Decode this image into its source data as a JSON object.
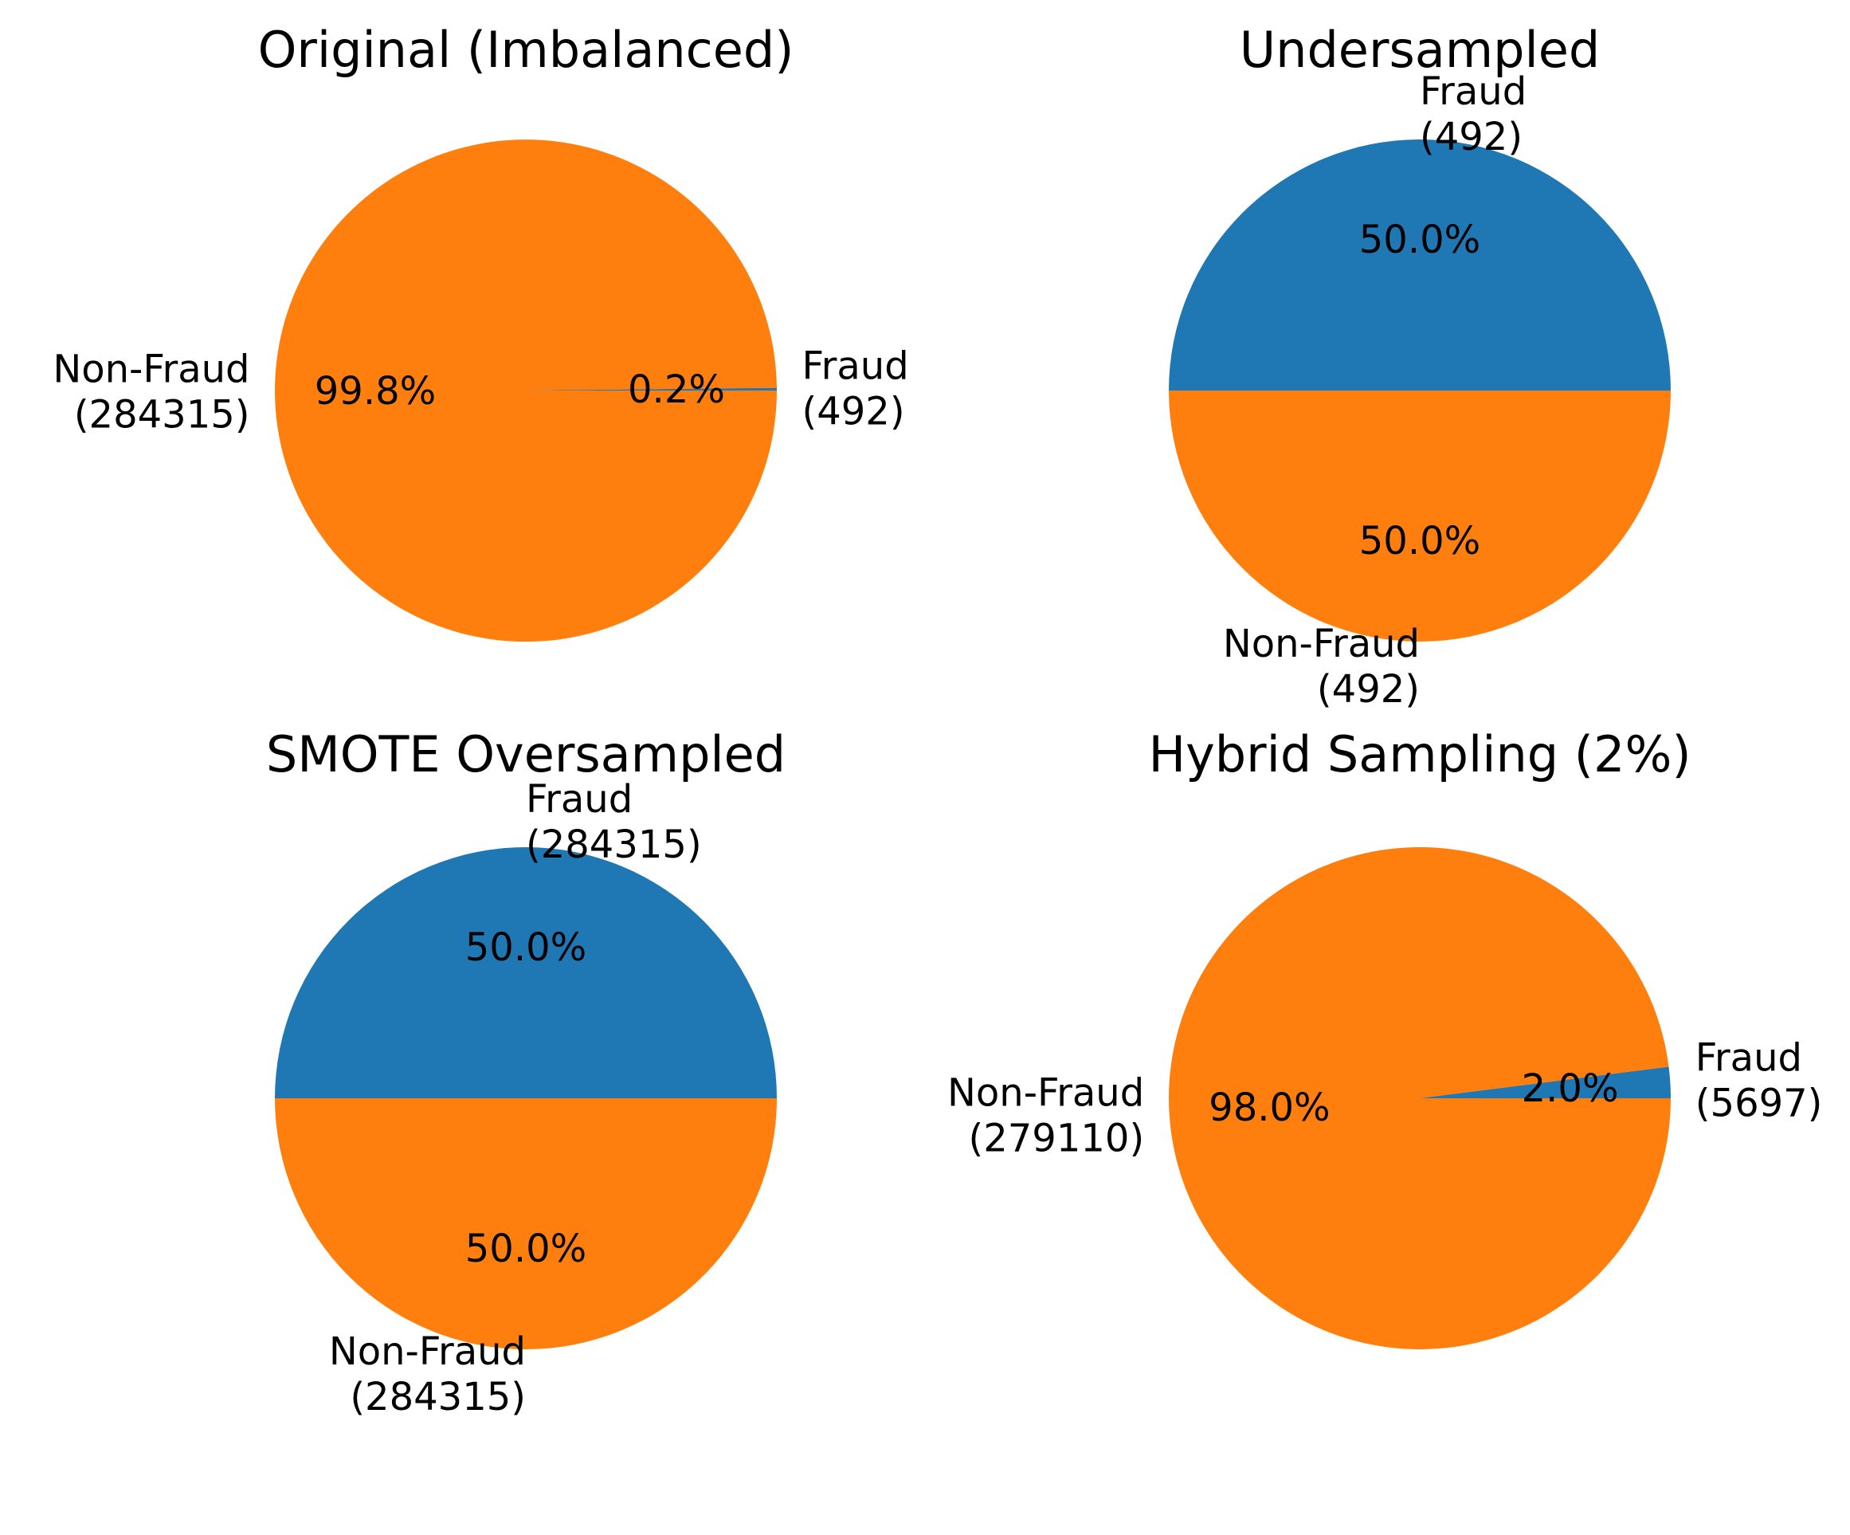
{
  "chart_data": [
    {
      "type": "pie",
      "title": "Original (Imbalanced)",
      "categories": [
        "Fraud",
        "Non-Fraud"
      ],
      "labels": [
        [
          "Fraud",
          "(492)"
        ],
        [
          "Non-Fraud",
          "(284315)"
        ]
      ],
      "values": [
        492,
        284315
      ],
      "percentages": [
        "0.2%",
        "99.8%"
      ],
      "colors": [
        "#1f77b4",
        "#ff7f0e"
      ]
    },
    {
      "type": "pie",
      "title": "Undersampled",
      "categories": [
        "Fraud",
        "Non-Fraud"
      ],
      "labels": [
        [
          "Fraud",
          "(492)"
        ],
        [
          "Non-Fraud",
          "(492)"
        ]
      ],
      "values": [
        492,
        492
      ],
      "percentages": [
        "50.0%",
        "50.0%"
      ],
      "colors": [
        "#1f77b4",
        "#ff7f0e"
      ]
    },
    {
      "type": "pie",
      "title": "SMOTE Oversampled",
      "categories": [
        "Fraud",
        "Non-Fraud"
      ],
      "labels": [
        [
          "Fraud",
          "(284315)"
        ],
        [
          "Non-Fraud",
          "(284315)"
        ]
      ],
      "values": [
        284315,
        284315
      ],
      "percentages": [
        "50.0%",
        "50.0%"
      ],
      "colors": [
        "#1f77b4",
        "#ff7f0e"
      ]
    },
    {
      "type": "pie",
      "title": "Hybrid Sampling (2%)",
      "categories": [
        "Fraud",
        "Non-Fraud"
      ],
      "labels": [
        [
          "Fraud",
          "(5697)"
        ],
        [
          "Non-Fraud",
          "(279110)"
        ]
      ],
      "values": [
        5697,
        279110
      ],
      "percentages": [
        "2.0%",
        "98.0%"
      ],
      "colors": [
        "#1f77b4",
        "#ff7f0e"
      ]
    }
  ]
}
